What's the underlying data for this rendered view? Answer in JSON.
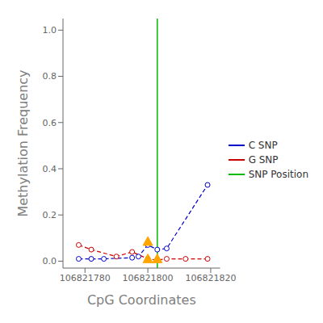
{
  "chart_data": {
    "type": "line",
    "xlabel": "CpG Coordinates",
    "ylabel": "Methylation Frequency",
    "xlim": [
      106821773,
      106821823
    ],
    "ylim": [
      -0.03,
      1.05
    ],
    "xticks": [
      106821780,
      106821800,
      106821820
    ],
    "yticks": [
      {
        "value": 0,
        "label": "0.0"
      },
      0.2,
      0.4,
      0.6,
      0.8,
      {
        "value": 1,
        "label": "1.0"
      }
    ],
    "grid": false,
    "legend": "right",
    "series": [
      {
        "name": "C SNP",
        "color": "#0000CC",
        "marker": "circle",
        "line_style": "dashed",
        "x": [
          106821778,
          106821782,
          106821786,
          106821795,
          106821797,
          106821800,
          106821803,
          106821806,
          106821819
        ],
        "values": [
          0.01,
          0.01,
          0.01,
          0.015,
          0.02,
          0.07,
          0.05,
          0.055,
          0.33
        ]
      },
      {
        "name": "G SNP",
        "color": "#CC0000",
        "marker": "circle",
        "line_style": "dashed",
        "x": [
          106821778,
          106821782,
          106821790,
          106821795,
          106821800,
          106821803,
          106821806,
          106821812,
          106821819
        ],
        "values": [
          0.07,
          0.05,
          0.02,
          0.04,
          0.01,
          0.005,
          0.01,
          0.01,
          0.01
        ]
      },
      {
        "type": "scatter",
        "color": "#FFA500",
        "marker": "triangle",
        "x": [
          106821800,
          106821803,
          106821800
        ],
        "values": [
          0.085,
          0.01,
          0.01
        ]
      }
    ],
    "vlines": [
      {
        "name": "SNP Position",
        "x": 106821803,
        "color": "#00BB00"
      }
    ]
  }
}
